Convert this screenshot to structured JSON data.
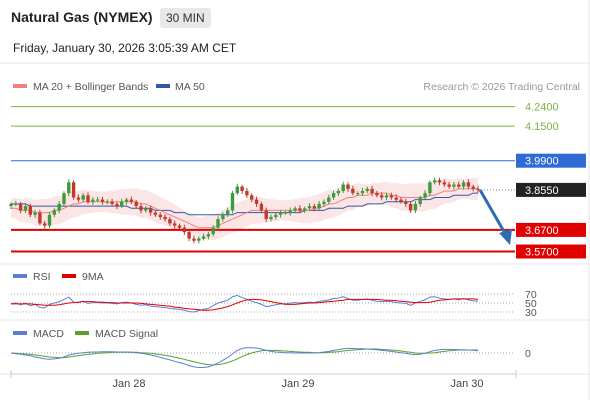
{
  "header": {
    "instrument": "Natural Gas (NYMEX)",
    "timeframe": "30 MIN",
    "datetime": "Friday, January 30, 2026 3:05:39 AM CET"
  },
  "legend": {
    "ma20": "MA 20 + Bollinger Bands",
    "ma50": "MA 50",
    "credit": "Research © 2026 Trading Central",
    "rsi": "RSI",
    "ma9": "9MA",
    "macd": "MACD",
    "macd_signal": "MACD Signal"
  },
  "colors": {
    "ma20": "#f08080",
    "ma50": "#2e5aa8",
    "band": "#fbdcdc",
    "up": "#3d9b3d",
    "down": "#c0392b",
    "resistance_green": "#7cb342",
    "resistance_blue": "#2e6bd6",
    "support_red": "#e00000",
    "current": "#222222",
    "rsi": "#5b7fd6",
    "rsi_ma": "#e00000",
    "macd": "#5b7fd6",
    "macd_signal": "#5aa02c",
    "arrow": "#2e6bb5"
  },
  "chart_data": {
    "type": "candlestick",
    "x_ticks": [
      "Jan 28",
      "Jan 29",
      "Jan 30"
    ],
    "ylim": [
      3.54,
      4.28
    ],
    "levels": [
      {
        "label": "4.2400",
        "value": 4.24,
        "kind": "resistance-green"
      },
      {
        "label": "4.1500",
        "value": 4.15,
        "kind": "resistance-green"
      },
      {
        "label": "3.9900",
        "value": 3.99,
        "kind": "resistance-blue"
      },
      {
        "label": "3.8550",
        "value": 3.855,
        "kind": "current"
      },
      {
        "label": "3.6700",
        "value": 3.67,
        "kind": "support"
      },
      {
        "label": "3.5700",
        "value": 3.57,
        "kind": "support"
      }
    ],
    "forecast": {
      "from": 3.855,
      "to": 3.6
    },
    "close": [
      3.79,
      3.79,
      3.76,
      3.78,
      3.74,
      3.75,
      3.7,
      3.69,
      3.74,
      3.76,
      3.79,
      3.84,
      3.89,
      3.82,
      3.81,
      3.83,
      3.8,
      3.81,
      3.81,
      3.8,
      3.8,
      3.79,
      3.78,
      3.8,
      3.81,
      3.8,
      3.78,
      3.76,
      3.77,
      3.75,
      3.74,
      3.73,
      3.72,
      3.7,
      3.69,
      3.68,
      3.66,
      3.63,
      3.62,
      3.63,
      3.64,
      3.65,
      3.68,
      3.72,
      3.74,
      3.76,
      3.84,
      3.87,
      3.85,
      3.83,
      3.81,
      3.79,
      3.76,
      3.72,
      3.73,
      3.74,
      3.75,
      3.75,
      3.76,
      3.77,
      3.76,
      3.77,
      3.78,
      3.77,
      3.79,
      3.8,
      3.82,
      3.84,
      3.85,
      3.88,
      3.86,
      3.84,
      3.84,
      3.85,
      3.86,
      3.84,
      3.83,
      3.82,
      3.83,
      3.82,
      3.81,
      3.8,
      3.79,
      3.76,
      3.79,
      3.82,
      3.84,
      3.89,
      3.9,
      3.89,
      3.88,
      3.87,
      3.88,
      3.87,
      3.89,
      3.87,
      3.86,
      3.855
    ],
    "ma20": [
      3.77,
      3.77,
      3.76,
      3.76,
      3.76,
      3.75,
      3.75,
      3.75,
      3.75,
      3.76,
      3.76,
      3.77,
      3.78,
      3.79,
      3.79,
      3.8,
      3.8,
      3.8,
      3.8,
      3.8,
      3.8,
      3.8,
      3.8,
      3.8,
      3.8,
      3.8,
      3.8,
      3.79,
      3.79,
      3.78,
      3.77,
      3.76,
      3.75,
      3.74,
      3.73,
      3.72,
      3.71,
      3.7,
      3.69,
      3.68,
      3.68,
      3.68,
      3.68,
      3.69,
      3.7,
      3.71,
      3.72,
      3.73,
      3.74,
      3.75,
      3.76,
      3.76,
      3.76,
      3.76,
      3.76,
      3.76,
      3.76,
      3.76,
      3.76,
      3.76,
      3.76,
      3.76,
      3.76,
      3.77,
      3.77,
      3.78,
      3.79,
      3.79,
      3.8,
      3.81,
      3.82,
      3.82,
      3.83,
      3.83,
      3.83,
      3.84,
      3.84,
      3.84,
      3.84,
      3.83,
      3.83,
      3.82,
      3.82,
      3.82,
      3.82,
      3.82,
      3.82,
      3.83,
      3.83,
      3.84,
      3.85,
      3.85,
      3.85,
      3.86,
      3.86,
      3.86,
      3.86,
      3.86
    ],
    "ma50": [
      3.79,
      3.79,
      3.79,
      3.79,
      3.78,
      3.78,
      3.78,
      3.78,
      3.78,
      3.78,
      3.78,
      3.78,
      3.78,
      3.78,
      3.78,
      3.78,
      3.78,
      3.78,
      3.78,
      3.78,
      3.78,
      3.78,
      3.78,
      3.78,
      3.78,
      3.77,
      3.77,
      3.77,
      3.77,
      3.77,
      3.76,
      3.76,
      3.76,
      3.76,
      3.75,
      3.75,
      3.75,
      3.74,
      3.74,
      3.74,
      3.74,
      3.74,
      3.74,
      3.74,
      3.74,
      3.74,
      3.74,
      3.75,
      3.75,
      3.75,
      3.75,
      3.75,
      3.75,
      3.75,
      3.75,
      3.75,
      3.75,
      3.75,
      3.75,
      3.75,
      3.75,
      3.76,
      3.76,
      3.76,
      3.76,
      3.76,
      3.77,
      3.77,
      3.77,
      3.77,
      3.78,
      3.78,
      3.78,
      3.78,
      3.79,
      3.79,
      3.79,
      3.79,
      3.8,
      3.8,
      3.8,
      3.8,
      3.8,
      3.8,
      3.81,
      3.81,
      3.81,
      3.81,
      3.82,
      3.82,
      3.82,
      3.82,
      3.83,
      3.83,
      3.83,
      3.83,
      3.84,
      3.84
    ],
    "rsi": {
      "ticks": [
        70,
        50,
        30
      ],
      "values": [
        48,
        50,
        46,
        50,
        44,
        47,
        40,
        39,
        47,
        50,
        53,
        58,
        63,
        52,
        51,
        54,
        49,
        51,
        51,
        50,
        50,
        49,
        48,
        51,
        52,
        50,
        47,
        45,
        46,
        43,
        42,
        41,
        40,
        38,
        37,
        36,
        34,
        31,
        30,
        33,
        36,
        38,
        44,
        50,
        53,
        56,
        64,
        67,
        62,
        58,
        54,
        51,
        47,
        42,
        44,
        46,
        48,
        48,
        50,
        51,
        50,
        51,
        52,
        51,
        54,
        55,
        57,
        60,
        61,
        64,
        60,
        56,
        56,
        58,
        59,
        56,
        54,
        53,
        54,
        53,
        51,
        50,
        49,
        45,
        50,
        54,
        57,
        63,
        64,
        61,
        59,
        58,
        59,
        57,
        60,
        57,
        55,
        54
      ],
      "ma": [
        48,
        48,
        48,
        48,
        48,
        47,
        46,
        45,
        45,
        45,
        46,
        48,
        50,
        51,
        52,
        53,
        53,
        53,
        52,
        52,
        51,
        51,
        50,
        50,
        50,
        50,
        50,
        49,
        48,
        47,
        46,
        45,
        44,
        43,
        41,
        40,
        38,
        37,
        36,
        35,
        34,
        34,
        35,
        37,
        39,
        42,
        46,
        50,
        54,
        57,
        58,
        58,
        57,
        55,
        53,
        51,
        49,
        47,
        47,
        47,
        48,
        49,
        50,
        50,
        51,
        52,
        53,
        54,
        55,
        56,
        58,
        58,
        58,
        58,
        58,
        58,
        58,
        57,
        56,
        56,
        55,
        54,
        53,
        52,
        51,
        51,
        51,
        52,
        54,
        56,
        57,
        58,
        59,
        59,
        59,
        59,
        59,
        58
      ]
    },
    "macd": {
      "zero_tick": "0",
      "values": [
        0.0,
        -0.002,
        -0.004,
        -0.006,
        -0.008,
        -0.012,
        -0.015,
        -0.018,
        -0.019,
        -0.018,
        -0.016,
        -0.012,
        -0.006,
        -0.003,
        -0.001,
        0.001,
        0.002,
        0.003,
        0.003,
        0.004,
        0.004,
        0.004,
        0.003,
        0.003,
        0.003,
        0.002,
        0.001,
        -0.001,
        -0.003,
        -0.006,
        -0.009,
        -0.013,
        -0.017,
        -0.021,
        -0.025,
        -0.029,
        -0.033,
        -0.038,
        -0.042,
        -0.044,
        -0.044,
        -0.042,
        -0.037,
        -0.03,
        -0.022,
        -0.014,
        -0.003,
        0.008,
        0.014,
        0.016,
        0.016,
        0.015,
        0.012,
        0.008,
        0.005,
        0.003,
        0.002,
        0.001,
        0.001,
        0.0,
        0.0,
        0.0,
        0.0,
        0.0,
        0.001,
        0.003,
        0.005,
        0.008,
        0.01,
        0.013,
        0.014,
        0.014,
        0.013,
        0.013,
        0.012,
        0.011,
        0.01,
        0.008,
        0.007,
        0.005,
        0.003,
        0.001,
        -0.001,
        -0.004,
        -0.005,
        -0.004,
        -0.001,
        0.004,
        0.008,
        0.01,
        0.011,
        0.011,
        0.011,
        0.01,
        0.01,
        0.009,
        0.008,
        0.007
      ],
      "signal": [
        0.0,
        -0.001,
        -0.002,
        -0.003,
        -0.004,
        -0.006,
        -0.008,
        -0.01,
        -0.012,
        -0.013,
        -0.014,
        -0.014,
        -0.012,
        -0.01,
        -0.008,
        -0.006,
        -0.004,
        -0.003,
        -0.001,
        0.0,
        0.001,
        0.002,
        0.002,
        0.002,
        0.002,
        0.002,
        0.002,
        0.001,
        0.0,
        -0.001,
        -0.003,
        -0.005,
        -0.007,
        -0.01,
        -0.013,
        -0.016,
        -0.019,
        -0.023,
        -0.026,
        -0.03,
        -0.033,
        -0.035,
        -0.036,
        -0.035,
        -0.033,
        -0.029,
        -0.024,
        -0.018,
        -0.011,
        -0.005,
        0.0,
        0.004,
        0.007,
        0.008,
        0.008,
        0.008,
        0.007,
        0.006,
        0.005,
        0.004,
        0.003,
        0.002,
        0.002,
        0.001,
        0.001,
        0.001,
        0.002,
        0.003,
        0.004,
        0.006,
        0.008,
        0.009,
        0.01,
        0.011,
        0.012,
        0.012,
        0.012,
        0.011,
        0.01,
        0.009,
        0.008,
        0.006,
        0.004,
        0.002,
        0.0,
        -0.001,
        -0.001,
        0.0,
        0.001,
        0.003,
        0.005,
        0.007,
        0.008,
        0.009,
        0.009,
        0.009,
        0.009,
        0.009
      ]
    }
  }
}
